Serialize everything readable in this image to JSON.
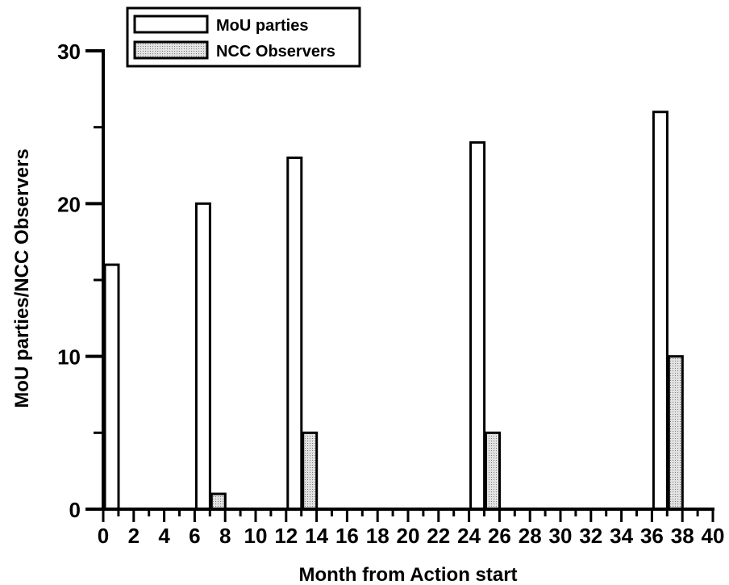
{
  "chart_data": {
    "type": "bar",
    "title": "",
    "xlabel": "Month from Action start",
    "ylabel": "MoU parties/NCC Observers",
    "x": [
      0,
      6,
      12,
      24,
      36
    ],
    "series": [
      {
        "name": "MoU parties",
        "values": [
          16,
          20,
          23,
          24,
          26
        ],
        "fill": "#ffffff"
      },
      {
        "name": "NCC Observers",
        "values": [
          0,
          1,
          5,
          5,
          10
        ],
        "fill": "#c8c8c8"
      }
    ],
    "xlim": [
      0,
      40
    ],
    "ylim": [
      0,
      30
    ],
    "x_ticks": [
      "0",
      "2",
      "4",
      "6",
      "8",
      "10",
      "12",
      "14",
      "16",
      "18",
      "20",
      "22",
      "24",
      "26",
      "28",
      "30",
      "32",
      "34",
      "36",
      "38",
      "40"
    ],
    "y_ticks": [
      "0",
      "10",
      "20",
      "30"
    ],
    "grid": false,
    "legend_position": "top-left"
  }
}
